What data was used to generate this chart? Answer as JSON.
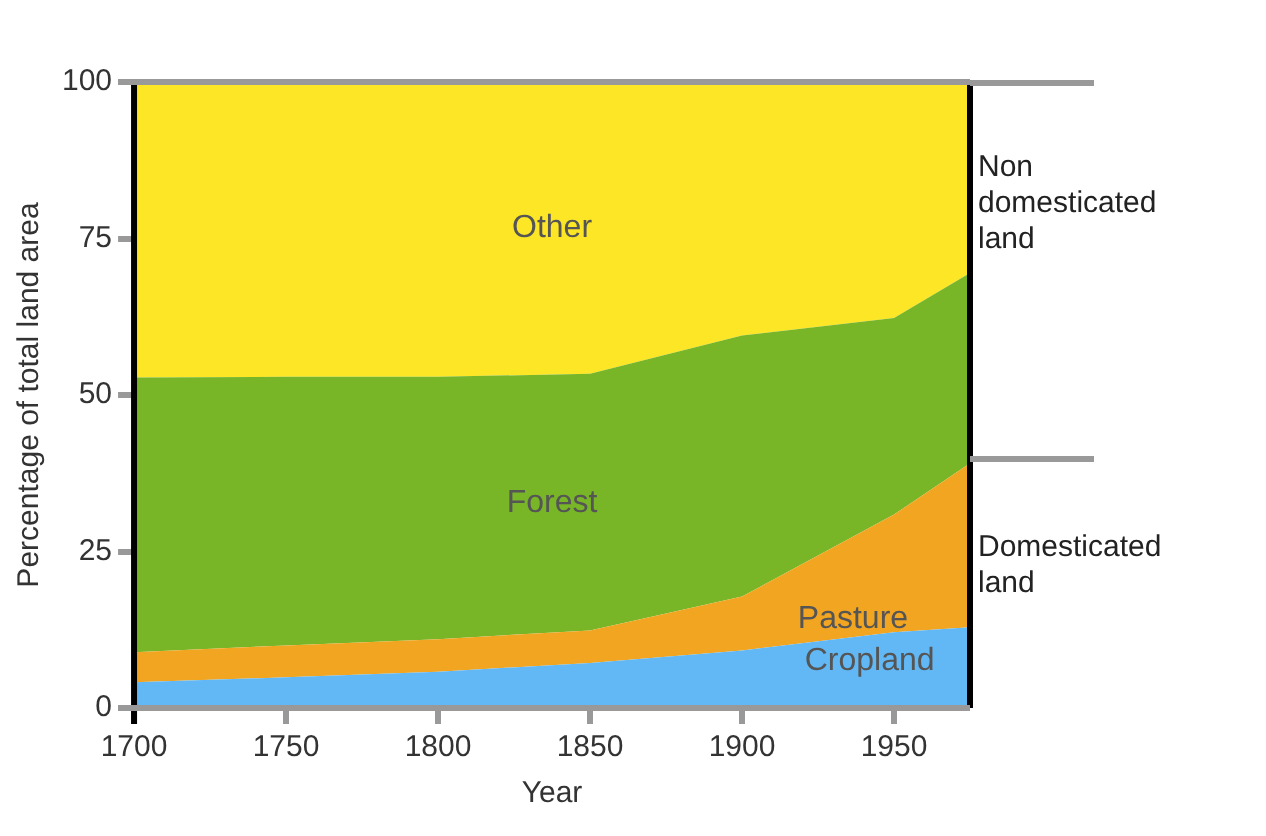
{
  "chart_data": {
    "type": "area",
    "stacked": true,
    "xlabel": "Year",
    "ylabel": "Percentage of total land area",
    "x": [
      1700,
      1750,
      1800,
      1850,
      1900,
      1950,
      1975
    ],
    "xlim": [
      1700,
      1975
    ],
    "xticks": [
      1700,
      1750,
      1800,
      1850,
      1900,
      1950
    ],
    "ylim": [
      0,
      100
    ],
    "yticks": [
      0,
      25,
      50,
      75,
      100
    ],
    "grid": false,
    "legend": false,
    "marker": "none",
    "series": [
      {
        "name": "Cropland",
        "color": "#62b8f5",
        "values": [
          4.1,
          4.9,
          5.8,
          7.2,
          9.2,
          12.1,
          12.9
        ]
      },
      {
        "name": "Pasture",
        "color": "#f2a521",
        "values": [
          4.8,
          5.1,
          5.2,
          5.2,
          8.6,
          18.8,
          26.2
        ]
      },
      {
        "name": "Forest",
        "color": "#78b628",
        "values": [
          43.9,
          42.9,
          41.9,
          41,
          41.7,
          31.4,
          30.4
        ]
      },
      {
        "name": "Other",
        "color": "#fce626",
        "values": [
          47.2,
          47.1,
          47.1,
          46.6,
          40.5,
          37.7,
          30.5
        ]
      }
    ],
    "annotations": [
      "Non domesticated land",
      "Domesticated land"
    ]
  }
}
